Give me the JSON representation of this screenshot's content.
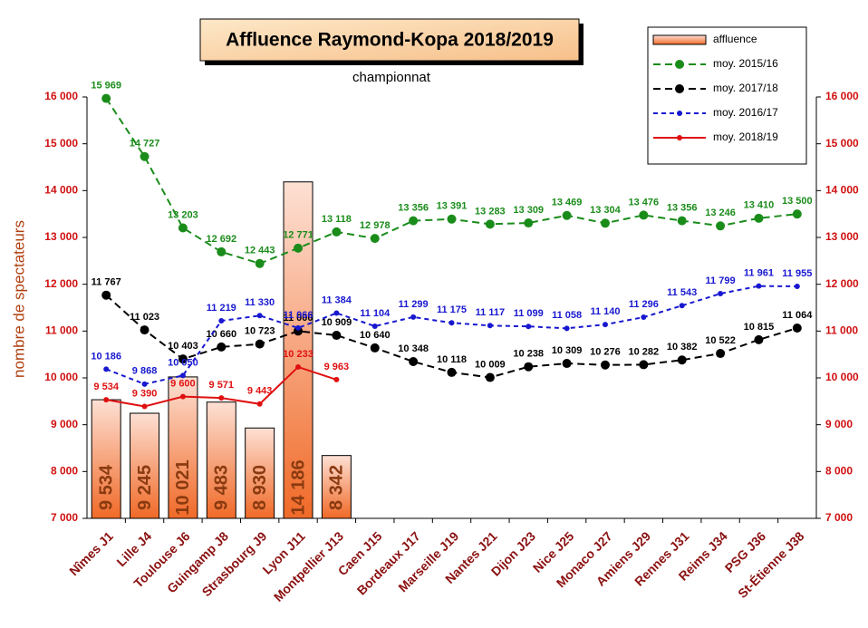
{
  "chart_data": {
    "type": "combo",
    "title": "Affluence Raymond-Kopa 2018/2019",
    "subtitle": "championnat",
    "y_label": "nombre de spectateurs",
    "categories": [
      "Nîmes J1",
      "Lille J4",
      "Toulouse J6",
      "Guingamp J8",
      "Strasbourg J9",
      "Lyon J11",
      "Montpellier J13",
      "Caen J15",
      "Bordeaux J17",
      "Marseille J19",
      "Nantes J21",
      "Dijon J23",
      "Nice J25",
      "Monaco J27",
      "Amiens J29",
      "Rennes J31",
      "Reims J34",
      "PSG J36",
      "St-Étienne J38"
    ],
    "ylim": [
      7000,
      16000
    ],
    "yticks": [
      {
        "value": 7000,
        "label": "7 000"
      },
      {
        "value": 8000,
        "label": "8 000"
      },
      {
        "value": 9000,
        "label": "9 000"
      },
      {
        "value": 10000,
        "label": "10 000"
      },
      {
        "value": 11000,
        "label": "11 000"
      },
      {
        "value": 12000,
        "label": "12 000"
      },
      {
        "value": 13000,
        "label": "13 000"
      },
      {
        "value": 14000,
        "label": "14 000"
      },
      {
        "value": 15000,
        "label": "15 000"
      },
      {
        "value": 16000,
        "label": "16 000"
      }
    ],
    "y2lim": [
      7000,
      16000
    ],
    "y2ticks": [
      {
        "value": 7000,
        "label": "7 000"
      },
      {
        "value": 8000,
        "label": "8 000"
      },
      {
        "value": 9000,
        "label": "9 000"
      },
      {
        "value": 10000,
        "label": "10 000"
      },
      {
        "value": 11000,
        "label": "11 000"
      },
      {
        "value": 12000,
        "label": "12 000"
      },
      {
        "value": 13000,
        "label": "13 000"
      },
      {
        "value": 14000,
        "label": "14 000"
      },
      {
        "value": 15000,
        "label": "15 000"
      },
      {
        "value": 16000,
        "label": "16 000"
      }
    ],
    "grid": false,
    "legend_position": "upper right",
    "series": [
      {
        "name": "affluence",
        "type": "bar",
        "color": "#f07030",
        "values": [
          9534,
          9245,
          10021,
          9483,
          8930,
          14186,
          8342,
          null,
          null,
          null,
          null,
          null,
          null,
          null,
          null,
          null,
          null,
          null,
          null
        ],
        "value_labels": [
          "9 534",
          "9 245",
          "10 021",
          "9 483",
          "8 930",
          "14 186",
          "8 342",
          null,
          null,
          null,
          null,
          null,
          null,
          null,
          null,
          null,
          null,
          null,
          null
        ]
      },
      {
        "name": "moy. 2015/16",
        "type": "line",
        "color": "#1a8c1a",
        "dash": "8 5",
        "marker": 5,
        "values": [
          15969,
          14727,
          13203,
          12692,
          12443,
          12771,
          13118,
          12978,
          13356,
          13391,
          13283,
          13309,
          13469,
          13304,
          13476,
          13356,
          13246,
          13410,
          13500
        ],
        "value_labels": [
          "15 969",
          "14 727",
          "13 203",
          "12 692",
          "12 443",
          "12 771",
          "13 118",
          "12 978",
          "13 356",
          "13 391",
          "13 283",
          "13 309",
          "13 469",
          "13 304",
          "13 476",
          "13 356",
          "13 246",
          "13 410",
          "13 500"
        ]
      },
      {
        "name": "moy. 2017/18",
        "type": "line",
        "color": "#000000",
        "dash": "8 5",
        "marker": 5,
        "values": [
          11767,
          11023,
          10403,
          10660,
          10723,
          11000,
          10909,
          10640,
          10348,
          10118,
          10009,
          10238,
          10309,
          10276,
          10282,
          10382,
          10522,
          10815,
          11064
        ],
        "value_labels": [
          "11 767",
          "11 023",
          "10 403",
          "10 660",
          "10 723",
          "11 000",
          "10 909",
          "10 640",
          "10 348",
          "10 118",
          "10 009",
          "10 238",
          "10 309",
          "10 276",
          "10 282",
          "10 382",
          "10 522",
          "10 815",
          "11 064"
        ]
      },
      {
        "name": "moy. 2016/17",
        "type": "line",
        "color": "#1818d0",
        "dash": "5 4",
        "marker": 3,
        "values": [
          10186,
          9868,
          10050,
          11219,
          11330,
          11066,
          11384,
          11104,
          11299,
          11175,
          11117,
          11099,
          11058,
          11140,
          11296,
          11543,
          11799,
          11961,
          11955
        ],
        "value_labels": [
          "10 186",
          "9 868",
          "10 050",
          "11 219",
          "11 330",
          "11 066",
          "11 384",
          "11 104",
          "11 299",
          "11 175",
          "11 117",
          "11 099",
          "11 058",
          "11 140",
          "11 296",
          "11 543",
          "11 799",
          "11 961",
          "11 955"
        ]
      },
      {
        "name": "moy. 2018/19",
        "type": "line",
        "color": "#e01010",
        "dash": "none",
        "marker": 3,
        "values": [
          9534,
          9390,
          9600,
          9571,
          9443,
          10233,
          9963,
          null,
          null,
          null,
          null,
          null,
          null,
          null,
          null,
          null,
          null,
          null,
          null
        ],
        "value_labels": [
          "9 534",
          "9 390",
          "9 600",
          "9 571",
          "9 443",
          "10 233",
          "9 963",
          null,
          null,
          null,
          null,
          null,
          null,
          null,
          null,
          null,
          null,
          null,
          null
        ]
      }
    ]
  }
}
